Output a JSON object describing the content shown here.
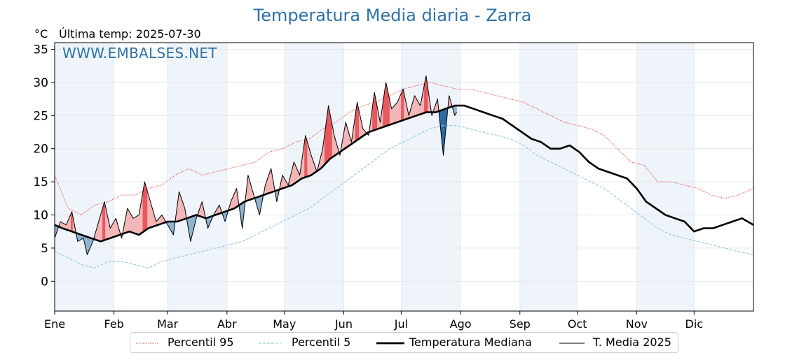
{
  "header": {
    "title": "Temperatura Media diaria - Zarra",
    "unit": "°C",
    "last_temp": "Última temp: 2025-07-30",
    "watermark": "WWW.EMBALSES.NET"
  },
  "legend": {
    "p95": "Percentil 95",
    "p5": "Percentil 5",
    "median": "Temperatura Mediana",
    "current": "T. Media 2025"
  },
  "colors": {
    "title": "#2e72a8",
    "p95": "#e31a1c",
    "p5": "#9ecae1",
    "median": "#000000",
    "current": "#000000",
    "above_light": "#f4b6b6",
    "above_strong": "#e8585e",
    "below_light": "#8fb3d2",
    "below_strong": "#2b6aa3",
    "band": "#eef4fa"
  },
  "chart_data": {
    "type": "line",
    "title": "Temperatura Media diaria - Zarra",
    "ylabel": "°C",
    "xlim": [
      1,
      366
    ],
    "ylim": [
      -4.5,
      36
    ],
    "yticks": [
      0,
      5,
      10,
      15,
      20,
      25,
      30,
      35
    ],
    "month_ticks": [
      {
        "label": "Ene",
        "day": 1
      },
      {
        "label": "Feb",
        "day": 32
      },
      {
        "label": "Mar",
        "day": 60
      },
      {
        "label": "Abr",
        "day": 91
      },
      {
        "label": "May",
        "day": 121
      },
      {
        "label": "Jun",
        "day": 152
      },
      {
        "label": "Jul",
        "day": 182
      },
      {
        "label": "Ago",
        "day": 213
      },
      {
        "label": "Sep",
        "day": 244
      },
      {
        "label": "Oct",
        "day": 274
      },
      {
        "label": "Nov",
        "day": 305
      },
      {
        "label": "Dic",
        "day": 335
      }
    ],
    "grid": true,
    "legend_position": "bottom",
    "series": [
      {
        "name": "Percentil 95",
        "style": "dotted",
        "x": [
          1,
          8,
          15,
          22,
          29,
          36,
          43,
          50,
          57,
          64,
          71,
          78,
          85,
          92,
          99,
          106,
          113,
          120,
          127,
          134,
          141,
          148,
          155,
          162,
          169,
          176,
          183,
          190,
          197,
          204,
          211,
          218,
          225,
          232,
          239,
          246,
          253,
          260,
          267,
          274,
          281,
          288,
          295,
          302,
          309,
          316,
          323,
          330,
          337,
          344,
          351,
          358,
          366
        ],
        "y": [
          16,
          11,
          10,
          11.5,
          12,
          13,
          13,
          14,
          14.5,
          16,
          17,
          16,
          16.5,
          17,
          17.5,
          18,
          19.5,
          20,
          21,
          21.5,
          23,
          24,
          25.5,
          26.5,
          27,
          28,
          29,
          29.5,
          30,
          29.5,
          29,
          29,
          28.5,
          28,
          27.5,
          27,
          26,
          25,
          24,
          23.5,
          23,
          22,
          20,
          18,
          17.5,
          15,
          15,
          14.5,
          14,
          13,
          12.5,
          13,
          14
        ]
      },
      {
        "name": "Percentil 5",
        "style": "dashed",
        "x": [
          1,
          8,
          15,
          22,
          29,
          36,
          43,
          50,
          57,
          64,
          71,
          78,
          85,
          92,
          99,
          106,
          113,
          120,
          127,
          134,
          141,
          148,
          155,
          162,
          169,
          176,
          183,
          190,
          197,
          204,
          211,
          218,
          225,
          232,
          239,
          246,
          253,
          260,
          267,
          274,
          281,
          288,
          295,
          302,
          309,
          316,
          323,
          330,
          337,
          344,
          351,
          358,
          366
        ],
        "y": [
          4.5,
          3.5,
          2.5,
          2,
          3,
          3,
          2.5,
          2,
          3,
          3.5,
          4,
          4.5,
          5,
          5.5,
          6,
          7,
          8,
          9,
          10,
          11,
          12.5,
          14,
          15.5,
          17,
          18.5,
          20,
          21,
          22,
          23,
          23.5,
          23.5,
          23,
          22.5,
          22,
          21.5,
          20.5,
          19,
          18,
          17,
          16,
          15,
          14,
          12.5,
          11,
          9.5,
          8,
          7,
          6.5,
          6,
          5.5,
          5,
          4.5,
          4
        ]
      },
      {
        "name": "Temperatura Mediana",
        "style": "solid-thick",
        "x": [
          1,
          5,
          10,
          15,
          20,
          25,
          30,
          35,
          40,
          45,
          50,
          55,
          60,
          65,
          70,
          75,
          80,
          85,
          90,
          95,
          100,
          105,
          110,
          115,
          120,
          125,
          130,
          135,
          140,
          145,
          150,
          155,
          160,
          165,
          170,
          175,
          180,
          185,
          190,
          195,
          200,
          205,
          210,
          215,
          220,
          225,
          230,
          235,
          240,
          245,
          250,
          255,
          260,
          265,
          270,
          275,
          280,
          285,
          290,
          295,
          300,
          305,
          310,
          315,
          320,
          325,
          330,
          335,
          340,
          345,
          350,
          355,
          360,
          366
        ],
        "y": [
          8.5,
          8,
          7.5,
          7,
          6.5,
          6,
          6.5,
          7,
          7.5,
          7,
          8,
          8.5,
          9,
          9,
          9.5,
          10,
          9.5,
          10,
          10.5,
          11,
          12,
          12.5,
          13,
          13.5,
          14,
          14.5,
          15.5,
          16,
          17,
          18.5,
          19.5,
          20.5,
          21.5,
          22.5,
          23,
          23.5,
          24,
          24.5,
          25,
          25.5,
          25.5,
          26,
          26.5,
          26.5,
          26,
          25.5,
          25,
          24.5,
          23.5,
          22.5,
          21.5,
          21,
          20,
          20,
          20.5,
          19.5,
          18,
          17,
          16.5,
          16,
          15.5,
          14,
          12,
          11,
          10,
          9.5,
          9,
          7.5,
          8,
          8,
          8.5,
          9,
          9.5,
          8.5
        ]
      },
      {
        "name": "T. Media 2025",
        "style": "solid-thin",
        "x": [
          1,
          4,
          7,
          10,
          13,
          16,
          18,
          21,
          24,
          27,
          30,
          33,
          36,
          39,
          42,
          45,
          48,
          51,
          54,
          57,
          60,
          63,
          66,
          69,
          72,
          75,
          78,
          81,
          84,
          87,
          90,
          93,
          96,
          99,
          102,
          105,
          108,
          111,
          114,
          117,
          120,
          123,
          126,
          129,
          132,
          135,
          138,
          141,
          144,
          147,
          150,
          153,
          156,
          159,
          162,
          165,
          168,
          171,
          174,
          177,
          180,
          183,
          186,
          189,
          192,
          195,
          198,
          201,
          204,
          207,
          210,
          211
        ],
        "y": [
          6.5,
          9,
          8.5,
          10.5,
          6,
          6.5,
          4,
          6,
          9,
          12,
          8,
          9.5,
          6.5,
          11,
          9.5,
          10,
          15,
          12,
          9,
          10,
          8.5,
          7,
          13.5,
          11,
          6,
          9.5,
          12,
          8,
          10,
          11.5,
          9,
          12,
          14,
          8,
          16,
          13,
          10,
          14.5,
          17,
          12,
          16,
          14.5,
          18,
          16,
          22,
          19,
          16.5,
          20,
          26.5,
          22,
          19,
          24,
          21,
          27,
          23,
          22,
          28.5,
          24,
          30,
          26,
          27,
          29,
          25,
          28,
          26.5,
          31,
          25,
          27.5,
          19,
          28,
          25,
          25.5
        ]
      }
    ]
  }
}
